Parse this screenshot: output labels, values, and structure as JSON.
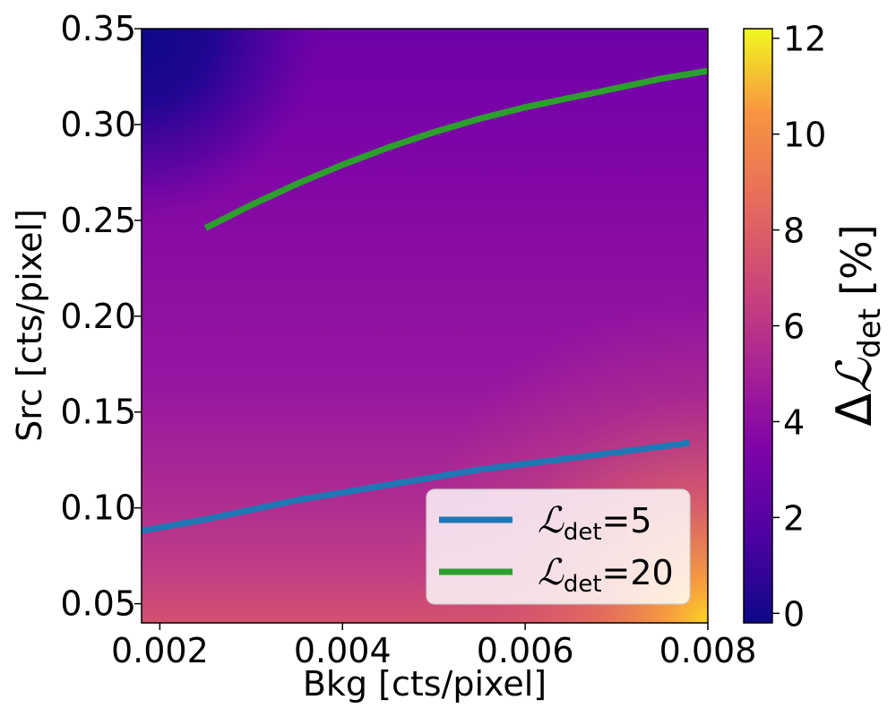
{
  "chart_data": {
    "type": "heatmap",
    "xlabel": "Bkg [cts/pixel]",
    "ylabel": "Src [cts/pixel]",
    "xlim": [
      0.0018,
      0.008
    ],
    "ylim": [
      0.04,
      0.35
    ],
    "x_ticks": [
      0.002,
      0.004,
      0.006,
      0.008
    ],
    "x_tick_labels": [
      "0.002",
      "0.004",
      "0.006",
      "0.008"
    ],
    "y_ticks": [
      0.05,
      0.1,
      0.15,
      0.2,
      0.25,
      0.3,
      0.35
    ],
    "y_tick_labels": [
      "0.05",
      "0.10",
      "0.15",
      "0.20",
      "0.25",
      "0.30",
      "0.35"
    ],
    "colormap": "plasma",
    "colorbar": {
      "label_prefix": "Δ",
      "label_symbol": "ℒ",
      "label_subscript": "det",
      "label_suffix": "[%]",
      "range": [
        -0.2,
        12.2
      ],
      "ticks": [
        0,
        2,
        4,
        6,
        8,
        10,
        12
      ],
      "tick_labels": [
        "0",
        "2",
        "4",
        "6",
        "8",
        "10",
        "12"
      ]
    },
    "heatmap_description_points": [
      {
        "x": 0.002,
        "y": 0.34,
        "value": 0.3
      },
      {
        "x": 0.004,
        "y": 0.3,
        "value": 2.8
      },
      {
        "x": 0.006,
        "y": 0.2,
        "value": 3.6
      },
      {
        "x": 0.004,
        "y": 0.1,
        "value": 5.0
      },
      {
        "x": 0.007,
        "y": 0.05,
        "value": 9.5
      },
      {
        "x": 0.0078,
        "y": 0.043,
        "value": 12.0
      }
    ],
    "series": [
      {
        "name": "5",
        "color": "#1f77b4",
        "x": [
          0.0018,
          0.0025,
          0.003,
          0.0035,
          0.004,
          0.0045,
          0.005,
          0.0055,
          0.006,
          0.0065,
          0.007,
          0.0075,
          0.0078
        ],
        "y": [
          0.088,
          0.094,
          0.099,
          0.104,
          0.108,
          0.112,
          0.116,
          0.12,
          0.123,
          0.126,
          0.129,
          0.132,
          0.134
        ]
      },
      {
        "name": "20",
        "color": "#2ca02c",
        "x": [
          0.0025,
          0.003,
          0.0035,
          0.004,
          0.0045,
          0.005,
          0.0055,
          0.006,
          0.0065,
          0.007,
          0.0075,
          0.008
        ],
        "y": [
          0.246,
          0.258,
          0.269,
          0.279,
          0.288,
          0.296,
          0.303,
          0.309,
          0.314,
          0.319,
          0.324,
          0.328
        ]
      }
    ],
    "legend": {
      "placement": "lower-right",
      "symbol": "ℒ",
      "subscript": "det",
      "equals": "="
    }
  }
}
